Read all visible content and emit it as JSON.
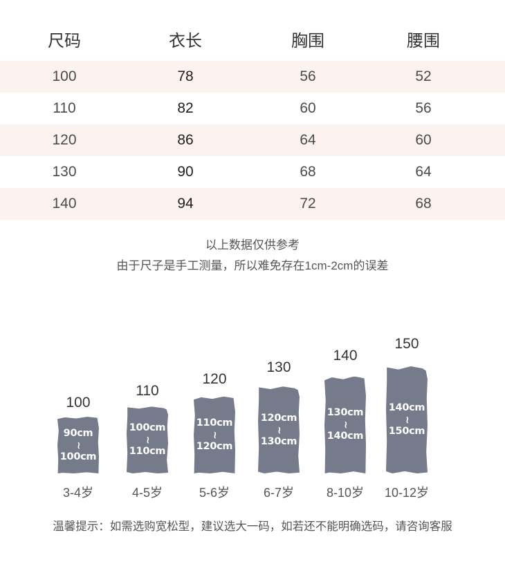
{
  "size_table": {
    "headers": [
      "尺码",
      "衣长",
      "胸围",
      "腰围"
    ],
    "rows": [
      [
        "100",
        "78",
        "56",
        "52"
      ],
      [
        "110",
        "82",
        "60",
        "56"
      ],
      [
        "120",
        "86",
        "64",
        "60"
      ],
      [
        "130",
        "90",
        "68",
        "64"
      ],
      [
        "140",
        "94",
        "72",
        "68"
      ]
    ]
  },
  "notes": {
    "line1": "以上数据仅供参考",
    "line2": "由于尺子是手工测量，所以难免存在1cm-2cm的误差"
  },
  "height_guide": {
    "bars": [
      {
        "size": "100",
        "range_from": "90cm",
        "separator": "~",
        "range_to": "100cm",
        "age": "3-4岁"
      },
      {
        "size": "110",
        "range_from": "100cm",
        "separator": "~",
        "range_to": "110cm",
        "age": "4-5岁"
      },
      {
        "size": "120",
        "range_from": "110cm",
        "separator": "~",
        "range_to": "120cm",
        "age": "5-6岁"
      },
      {
        "size": "130",
        "range_from": "120cm",
        "separator": "~",
        "range_to": "130cm",
        "age": "6-7岁"
      },
      {
        "size": "140",
        "range_from": "130cm",
        "separator": "~",
        "range_to": "140cm",
        "age": "8-10岁"
      },
      {
        "size": "150",
        "range_from": "140cm",
        "separator": "~",
        "range_to": "150cm",
        "age": "10-12岁"
      }
    ]
  },
  "tip": "温馨提示：如需选购宽松型，建议选大一码，如若还不能明确选码，请咨询客服",
  "colors": {
    "row_band": "#fcf3f0",
    "bar": "#767b8c",
    "text": "#333333"
  }
}
